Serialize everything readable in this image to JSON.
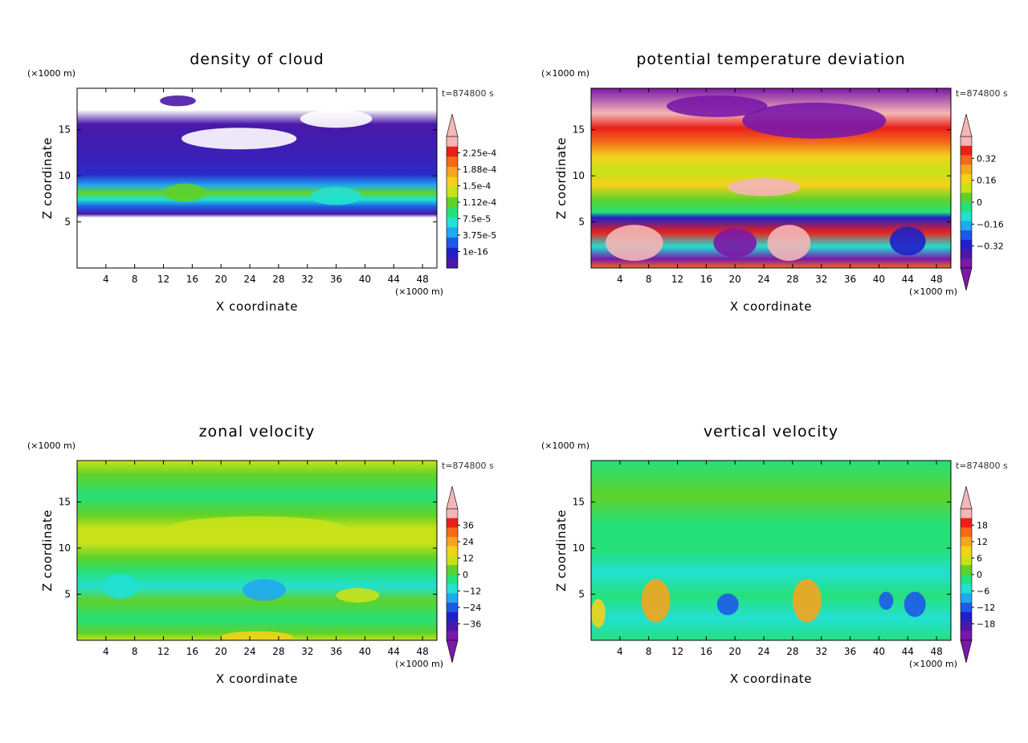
{
  "chart_data": [
    {
      "type": "heatmap",
      "title": "density of cloud",
      "xlabel": "X coordinate",
      "ylabel": "Z coordinate",
      "x_unit": "(×1000 m)",
      "y_unit": "(×1000 m)",
      "time_label": "t=874800 s",
      "xlim": [
        0,
        50
      ],
      "ylim": [
        0,
        19.5
      ],
      "x_ticks": [
        "4",
        "8",
        "12",
        "16",
        "20",
        "24",
        "28",
        "32",
        "36",
        "40",
        "44",
        "48"
      ],
      "y_ticks": [
        "5",
        "10",
        "15"
      ],
      "colorbar": {
        "labels": [
          "2.25e-4",
          "1.88e-4",
          "1.5e-4",
          "1.12e-4",
          "7.5e-5",
          "3.75e-5",
          "1e-16"
        ],
        "colors": [
          "#f4b6b6",
          "#e8201a",
          "#f46a1a",
          "#f5a51e",
          "#f2d21b",
          "#c8e21a",
          "#5fd22a",
          "#26e07a",
          "#22e0d2",
          "#20a8f0",
          "#1e5ae8",
          "#2020c8",
          "#4a18a8"
        ],
        "extend_min": false,
        "extend_max": true
      },
      "description_levels_note": "density of cloud shading by altitude"
    },
    {
      "type": "heatmap",
      "title": "potential temperature deviation",
      "xlabel": "X coordinate",
      "ylabel": "Z coordinate",
      "x_unit": "(×1000 m)",
      "y_unit": "(×1000 m)",
      "time_label": "t=874800 s",
      "xlim": [
        0,
        50
      ],
      "ylim": [
        0,
        19.5
      ],
      "x_ticks": [
        "4",
        "8",
        "12",
        "16",
        "20",
        "24",
        "28",
        "32",
        "36",
        "40",
        "44",
        "48"
      ],
      "y_ticks": [
        "5",
        "10",
        "15"
      ],
      "colorbar": {
        "labels": [
          "0.32",
          "0.16",
          "0",
          "−0.16",
          "−0.32"
        ],
        "colors": [
          "#f4b6b6",
          "#e8201a",
          "#f46a1a",
          "#f5a51e",
          "#f2d21b",
          "#c8e21a",
          "#5fd22a",
          "#26e07a",
          "#22e0d2",
          "#20a8f0",
          "#1e5ae8",
          "#2020c8",
          "#4a18a8",
          "#7a18a8"
        ],
        "extend_min": true,
        "extend_max": true
      }
    },
    {
      "type": "heatmap",
      "title": "zonal velocity",
      "xlabel": "X coordinate",
      "ylabel": "Z coordinate",
      "x_unit": "(×1000 m)",
      "y_unit": "(×1000 m)",
      "time_label": "t=874800 s",
      "xlim": [
        0,
        50
      ],
      "ylim": [
        0,
        19.5
      ],
      "x_ticks": [
        "4",
        "8",
        "12",
        "16",
        "20",
        "24",
        "28",
        "32",
        "36",
        "40",
        "44",
        "48"
      ],
      "y_ticks": [
        "5",
        "10",
        "15"
      ],
      "colorbar": {
        "labels": [
          "36",
          "24",
          "12",
          "0",
          "−12",
          "−24",
          "−36"
        ],
        "colors": [
          "#f4b6b6",
          "#e8201a",
          "#f46a1a",
          "#f5a51e",
          "#f2d21b",
          "#c8e21a",
          "#5fd22a",
          "#26e07a",
          "#22e0d2",
          "#20a8f0",
          "#1e5ae8",
          "#2020c8",
          "#4a18a8",
          "#7a18a8"
        ],
        "extend_min": true,
        "extend_max": true
      }
    },
    {
      "type": "heatmap",
      "title": "vertical velocity",
      "xlabel": "X coordinate",
      "ylabel": "Z coordinate",
      "x_unit": "(×1000 m)",
      "y_unit": "(×1000 m)",
      "time_label": "t=874800 s",
      "xlim": [
        0,
        50
      ],
      "ylim": [
        0,
        19.5
      ],
      "x_ticks": [
        "4",
        "8",
        "12",
        "16",
        "20",
        "24",
        "28",
        "32",
        "36",
        "40",
        "44",
        "48"
      ],
      "y_ticks": [
        "5",
        "10",
        "15"
      ],
      "colorbar": {
        "labels": [
          "18",
          "12",
          "6",
          "0",
          "−6",
          "−12",
          "−18"
        ],
        "colors": [
          "#f4b6b6",
          "#e8201a",
          "#f46a1a",
          "#f5a51e",
          "#f2d21b",
          "#c8e21a",
          "#5fd22a",
          "#26e07a",
          "#22e0d2",
          "#20a8f0",
          "#1e5ae8",
          "#2020c8",
          "#4a18a8",
          "#7a18a8"
        ],
        "extend_min": true,
        "extend_max": true
      }
    }
  ]
}
